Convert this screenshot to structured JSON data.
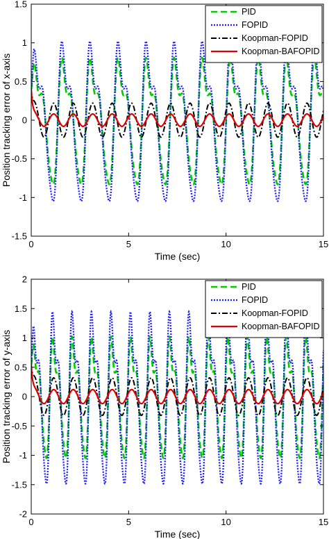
{
  "figure": {
    "panels": [
      "x",
      "y"
    ]
  },
  "chart_data": [
    {
      "type": "line",
      "panel": "x-axis",
      "title": "",
      "xlabel": "Time (sec)",
      "ylabel": "Position tracking error of x-axis",
      "xlim": [
        0,
        15
      ],
      "ylim": [
        -1.5,
        1.5
      ],
      "xticks": [
        0,
        5,
        10,
        15
      ],
      "yticks": [
        -1.5,
        -1,
        -0.5,
        0,
        0.5,
        1,
        1.5
      ],
      "grid": false,
      "legend_position": "top-right",
      "series": [
        {
          "name": "PID",
          "color": "#00cc00",
          "style": "dashed",
          "approx_shape": "oscillation",
          "amplitude": 0.95,
          "period_sec": 1.44,
          "initial_value": 0.4
        },
        {
          "name": "FOPID",
          "color": "#1a1aff",
          "style": "dotted",
          "approx_shape": "oscillation",
          "amplitude": 1.2,
          "period_sec": 1.44,
          "initial_value": 0.4
        },
        {
          "name": "Koopman-FOPID",
          "color": "#000000",
          "style": "dash-dot",
          "approx_shape": "sinusoid",
          "amplitude": 0.22,
          "period_sec": 1.0,
          "initial_value": 0.4
        },
        {
          "name": "Koopman-BAFOPID",
          "color": "#dd0000",
          "style": "solid",
          "approx_shape": "sinusoid",
          "amplitude": 0.08,
          "period_sec": 1.0,
          "initial_value": 0.4
        }
      ]
    },
    {
      "type": "line",
      "panel": "y-axis",
      "title": "",
      "xlabel": "Time (sec)",
      "ylabel": "Position tracking error of y-axis",
      "xlim": [
        0,
        15
      ],
      "ylim": [
        -2,
        2
      ],
      "xticks": [
        0,
        5,
        10,
        15
      ],
      "yticks": [
        -2,
        -1.5,
        -1,
        -0.5,
        0,
        0.5,
        1,
        1.5,
        2
      ],
      "grid": false,
      "legend_position": "top-right",
      "series": [
        {
          "name": "PID",
          "color": "#00cc00",
          "style": "dashed",
          "approx_shape": "oscillation",
          "amplitude": 1.2,
          "period_sec": 1.0,
          "initial_value": 0.55
        },
        {
          "name": "FOPID",
          "color": "#1a1aff",
          "style": "dotted",
          "approx_shape": "oscillation",
          "amplitude": 1.7,
          "period_sec": 1.0,
          "initial_value": 0.55
        },
        {
          "name": "Koopman-FOPID",
          "color": "#000000",
          "style": "dash-dot",
          "approx_shape": "sinusoid",
          "amplitude": 0.32,
          "period_sec": 1.0,
          "initial_value": 0.55
        },
        {
          "name": "Koopman-BAFOPID",
          "color": "#dd0000",
          "style": "solid",
          "approx_shape": "sinusoid",
          "amplitude": 0.12,
          "period_sec": 1.0,
          "initial_value": 0.55
        }
      ]
    }
  ]
}
